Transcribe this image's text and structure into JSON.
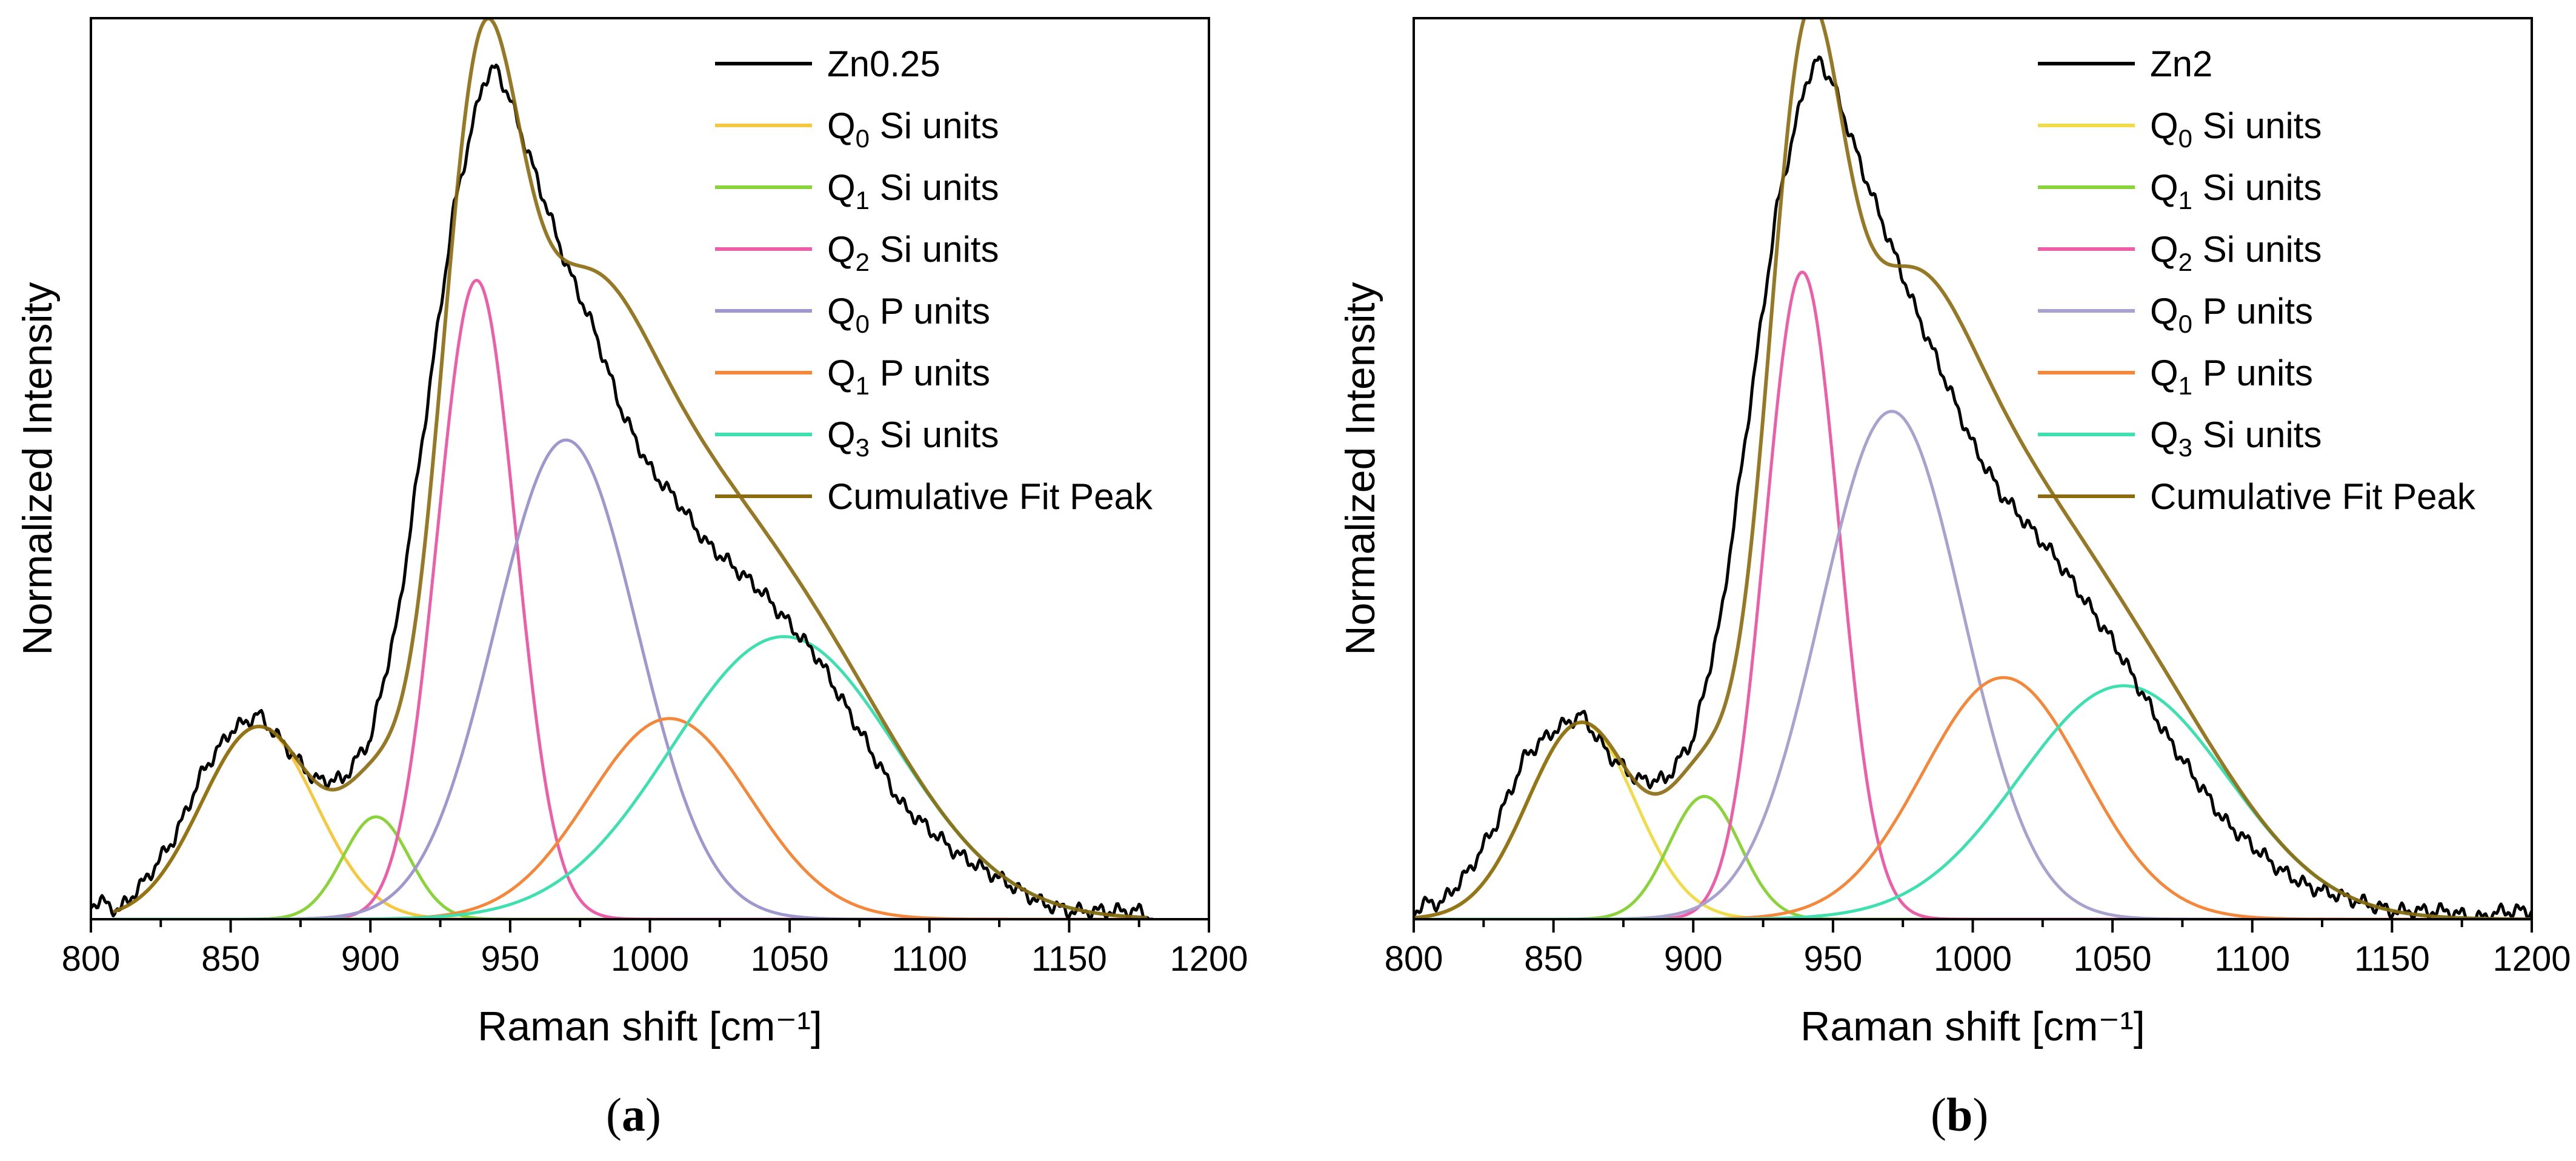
{
  "figure": {
    "panels": [
      {
        "id": "a",
        "label_open": "(",
        "label_letter": "a",
        "label_close": ")"
      },
      {
        "id": "b",
        "label_open": "(",
        "label_letter": "b",
        "label_close": ")"
      }
    ]
  },
  "chart_data": [
    {
      "type": "line",
      "panel": "a",
      "title": "",
      "xlabel": "Raman shift [cm⁻¹]",
      "ylabel": "Normalized Intensity",
      "xlim": [
        800,
        1200
      ],
      "ylim": [
        0,
        1.1
      ],
      "xticks": [
        "800",
        "850",
        "900",
        "950",
        "1000",
        "1050",
        "1100",
        "1150",
        "1200"
      ],
      "yticks_labeled": false,
      "legend_position": "top-right",
      "legend": [
        {
          "base": "Zn0.25",
          "sub": "",
          "rest": ""
        },
        {
          "base": "Q",
          "sub": "0",
          "rest": " Si units"
        },
        {
          "base": "Q",
          "sub": "1",
          "rest": " Si units"
        },
        {
          "base": "Q",
          "sub": "2",
          "rest": " Si units"
        },
        {
          "base": "Q",
          "sub": "0",
          "rest": " P units"
        },
        {
          "base": "Q",
          "sub": "1",
          "rest": " P units"
        },
        {
          "base": "Q",
          "sub": "3",
          "rest": " Si units"
        },
        {
          "base": "Cumulative Fit Peak",
          "sub": "",
          "rest": ""
        }
      ],
      "colors": [
        "#000000",
        "#f5c842",
        "#8bd33a",
        "#ec5ea8",
        "#9f97cd",
        "#f5873b",
        "#3fe0b0",
        "#8b6a10"
      ],
      "x_range_fit": [
        808,
        1178
      ],
      "measured": {
        "x": [
          800,
          805,
          810,
          820,
          830,
          840,
          850,
          860,
          870,
          880,
          890,
          900,
          910,
          920,
          930,
          940,
          945,
          950,
          960,
          970,
          980,
          990,
          1000,
          1010,
          1020,
          1030,
          1040,
          1050,
          1060,
          1070,
          1080,
          1090,
          1100,
          1110,
          1120,
          1130,
          1140,
          1150,
          1160,
          1170,
          1175,
          1180
        ],
        "y": [
          0.02,
          0.02,
          0.01,
          0.05,
          0.1,
          0.18,
          0.23,
          0.25,
          0.21,
          0.17,
          0.17,
          0.22,
          0.37,
          0.62,
          0.87,
          1.02,
          1.04,
          1.0,
          0.9,
          0.8,
          0.72,
          0.62,
          0.55,
          0.51,
          0.46,
          0.43,
          0.4,
          0.36,
          0.32,
          0.26,
          0.2,
          0.14,
          0.11,
          0.08,
          0.06,
          0.04,
          0.02,
          0.01,
          0.01,
          0.01,
          0.01,
          0.0
        ]
      },
      "components": [
        {
          "name": "Q0 Si units",
          "center": 860,
          "amplitude": 0.235,
          "fwhm": 48
        },
        {
          "name": "Q1 Si units",
          "center": 902,
          "amplitude": 0.125,
          "fwhm": 28
        },
        {
          "name": "Q2 Si units",
          "center": 938,
          "amplitude": 0.78,
          "fwhm": 33
        },
        {
          "name": "Q0 P units",
          "center": 970,
          "amplitude": 0.585,
          "fwhm": 60
        },
        {
          "name": "Q1 P units",
          "center": 1007,
          "amplitude": 0.245,
          "fwhm": 68
        },
        {
          "name": "Q3 Si units",
          "center": 1048,
          "amplitude": 0.345,
          "fwhm": 95
        }
      ]
    },
    {
      "type": "line",
      "panel": "b",
      "title": "",
      "xlabel": "Raman shift [cm⁻¹]",
      "ylabel": "Normalized Intensity",
      "xlim": [
        800,
        1200
      ],
      "ylim": [
        0,
        1.1
      ],
      "xticks": [
        "800",
        "850",
        "900",
        "950",
        "1000",
        "1050",
        "1100",
        "1150",
        "1200"
      ],
      "yticks_labeled": false,
      "legend_position": "top-right",
      "legend": [
        {
          "base": "Zn2",
          "sub": "",
          "rest": ""
        },
        {
          "base": "Q",
          "sub": "0",
          "rest": " Si units"
        },
        {
          "base": "Q",
          "sub": "1",
          "rest": " Si units"
        },
        {
          "base": "Q",
          "sub": "2",
          "rest": " Si units"
        },
        {
          "base": "Q",
          "sub": "0",
          "rest": " P units"
        },
        {
          "base": "Q",
          "sub": "1",
          "rest": " P units"
        },
        {
          "base": "Q",
          "sub": "3",
          "rest": " Si units"
        },
        {
          "base": "Cumulative Fit Peak",
          "sub": "",
          "rest": ""
        }
      ],
      "colors": [
        "#000000",
        "#f0dc4a",
        "#8bd33a",
        "#ec5ea8",
        "#a9a2cf",
        "#f5873b",
        "#3fe0b0",
        "#8b6a10"
      ],
      "x_range_fit": [
        800,
        1200
      ],
      "measured": {
        "x": [
          800,
          805,
          810,
          820,
          830,
          840,
          850,
          860,
          870,
          880,
          890,
          900,
          910,
          920,
          930,
          940,
          945,
          950,
          960,
          970,
          980,
          990,
          1000,
          1010,
          1020,
          1030,
          1040,
          1050,
          1060,
          1070,
          1080,
          1090,
          1100,
          1110,
          1120,
          1130,
          1140,
          1150,
          1160,
          1170,
          1180,
          1190,
          1200
        ],
        "y": [
          0.01,
          0.02,
          0.02,
          0.06,
          0.12,
          0.2,
          0.23,
          0.25,
          0.2,
          0.17,
          0.17,
          0.22,
          0.37,
          0.62,
          0.87,
          1.02,
          1.05,
          1.02,
          0.92,
          0.83,
          0.74,
          0.66,
          0.58,
          0.52,
          0.48,
          0.44,
          0.39,
          0.34,
          0.28,
          0.22,
          0.17,
          0.12,
          0.09,
          0.06,
          0.04,
          0.03,
          0.02,
          0.01,
          0.01,
          0.01,
          0.0,
          0.01,
          0.01
        ]
      },
      "components": [
        {
          "name": "Q0 Si units",
          "center": 860,
          "amplitude": 0.24,
          "fwhm": 45
        },
        {
          "name": "Q1 Si units",
          "center": 904,
          "amplitude": 0.15,
          "fwhm": 30
        },
        {
          "name": "Q2 Si units",
          "center": 939,
          "amplitude": 0.79,
          "fwhm": 31
        },
        {
          "name": "Q0 P units",
          "center": 971,
          "amplitude": 0.62,
          "fwhm": 60
        },
        {
          "name": "Q1 P units",
          "center": 1011,
          "amplitude": 0.295,
          "fwhm": 68
        },
        {
          "name": "Q3 Si units",
          "center": 1054,
          "amplitude": 0.285,
          "fwhm": 88
        }
      ]
    }
  ]
}
